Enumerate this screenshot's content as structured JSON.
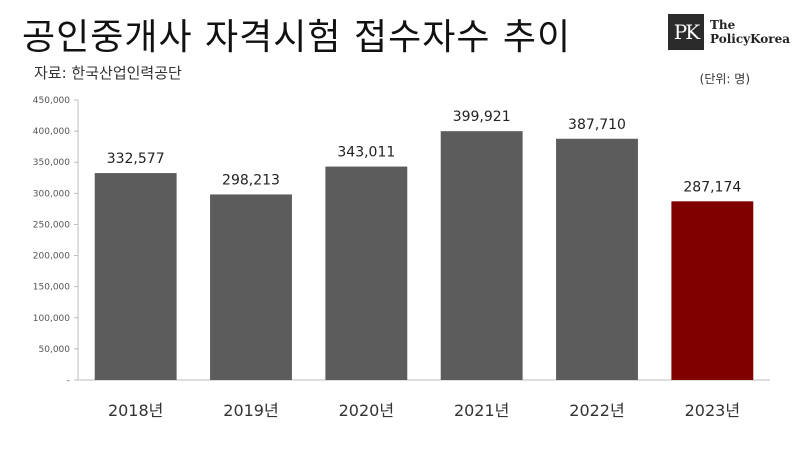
{
  "title": "공인중개사 자격시험 접수자수 추이",
  "source": "자료: 한국산업인력공단",
  "unit": "(단위: 명)",
  "logo": {
    "mark": "PK",
    "line1": "The",
    "line2": "PolicyKorea"
  },
  "colors": {
    "bar": "#5c5c5c",
    "highlight": "#800000",
    "background": "#ffffff"
  },
  "chart_data": {
    "type": "bar",
    "categories": [
      "2018년",
      "2019년",
      "2020년",
      "2021년",
      "2022년",
      "2023년"
    ],
    "values": [
      332577,
      298213,
      343011,
      399921,
      387710,
      287174
    ],
    "value_labels": [
      "332,577",
      "298,213",
      "343,011",
      "399,921",
      "387,710",
      "287,174"
    ],
    "highlight_index": 5,
    "ylim": [
      0,
      450000
    ],
    "yticks": [
      0,
      50000,
      100000,
      150000,
      200000,
      250000,
      300000,
      350000,
      400000,
      450000
    ],
    "ytick_labels": [
      "-",
      "50,000",
      "100,000",
      "150,000",
      "200,000",
      "250,000",
      "300,000",
      "350,000",
      "400,000",
      "450,000"
    ],
    "grid": false,
    "legend": "none"
  }
}
